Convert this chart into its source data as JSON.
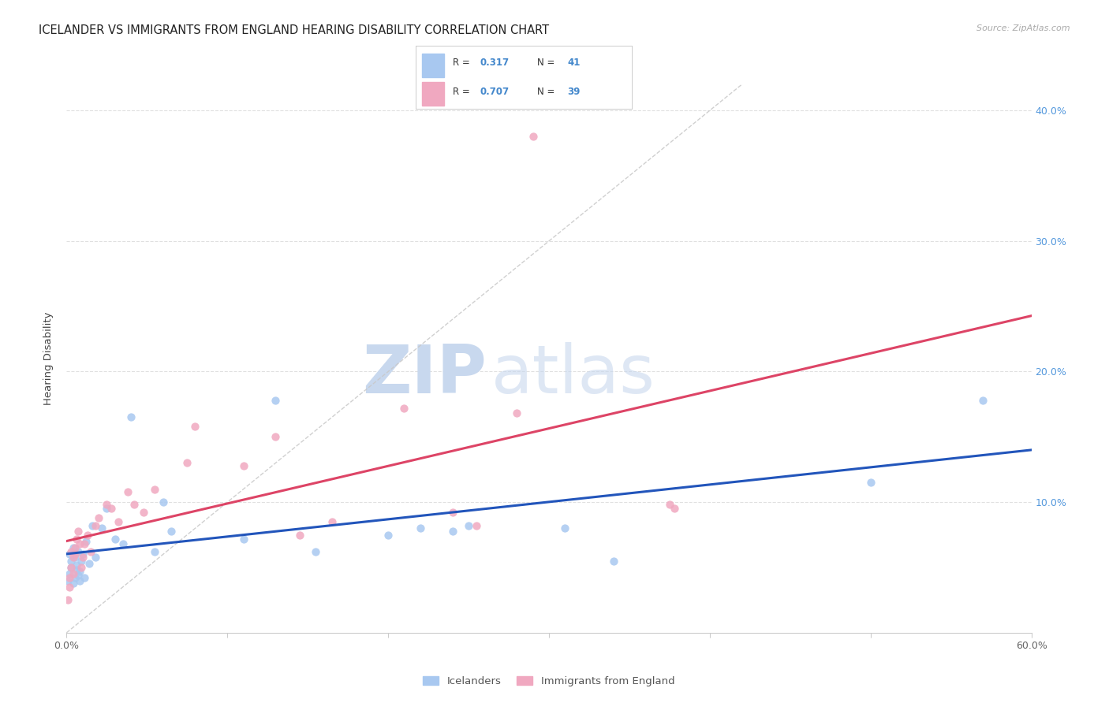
{
  "title": "ICELANDER VS IMMIGRANTS FROM ENGLAND HEARING DISABILITY CORRELATION CHART",
  "source": "Source: ZipAtlas.com",
  "ylabel": "Hearing Disability",
  "x_min": 0.0,
  "x_max": 0.6,
  "y_min": 0.0,
  "y_max": 0.42,
  "x_ticks": [
    0.0,
    0.1,
    0.2,
    0.3,
    0.4,
    0.5,
    0.6
  ],
  "x_tick_labels": [
    "0.0%",
    "",
    "",
    "",
    "",
    "",
    "60.0%"
  ],
  "y_ticks_right": [
    0.1,
    0.2,
    0.3,
    0.4
  ],
  "y_tick_labels_right": [
    "10.0%",
    "20.0%",
    "30.0%",
    "40.0%"
  ],
  "legend_bottom1": "Icelanders",
  "legend_bottom2": "Immigrants from England",
  "blue_color": "#a8c8f0",
  "pink_color": "#f0a8c0",
  "blue_line_color": "#2255bb",
  "pink_line_color": "#dd4466",
  "diag_line_color": "#c8c8c8",
  "watermark_color": "#dce8f5",
  "watermark_text": "ZIPatlas",
  "grid_color": "#e0e0e0",
  "title_fontsize": 10.5,
  "axis_fontsize": 9,
  "marker_size": 55,
  "blue_x": [
    0.001,
    0.002,
    0.002,
    0.003,
    0.003,
    0.004,
    0.004,
    0.005,
    0.005,
    0.006,
    0.006,
    0.007,
    0.007,
    0.008,
    0.008,
    0.009,
    0.01,
    0.011,
    0.012,
    0.014,
    0.016,
    0.018,
    0.022,
    0.025,
    0.03,
    0.035,
    0.04,
    0.055,
    0.06,
    0.065,
    0.11,
    0.13,
    0.155,
    0.2,
    0.22,
    0.24,
    0.25,
    0.31,
    0.34,
    0.5,
    0.57
  ],
  "blue_y": [
    0.04,
    0.06,
    0.045,
    0.055,
    0.05,
    0.065,
    0.038,
    0.058,
    0.042,
    0.052,
    0.048,
    0.044,
    0.062,
    0.047,
    0.04,
    0.055,
    0.06,
    0.042,
    0.07,
    0.053,
    0.082,
    0.058,
    0.08,
    0.095,
    0.072,
    0.068,
    0.165,
    0.062,
    0.1,
    0.078,
    0.072,
    0.178,
    0.062,
    0.075,
    0.08,
    0.078,
    0.082,
    0.08,
    0.055,
    0.115,
    0.178
  ],
  "pink_x": [
    0.001,
    0.002,
    0.002,
    0.003,
    0.003,
    0.004,
    0.004,
    0.005,
    0.005,
    0.006,
    0.007,
    0.008,
    0.009,
    0.01,
    0.011,
    0.013,
    0.015,
    0.018,
    0.02,
    0.025,
    0.028,
    0.032,
    0.038,
    0.042,
    0.048,
    0.055,
    0.075,
    0.08,
    0.11,
    0.13,
    0.145,
    0.165,
    0.21,
    0.24,
    0.255,
    0.28,
    0.29,
    0.375,
    0.378
  ],
  "pink_y": [
    0.025,
    0.035,
    0.042,
    0.05,
    0.062,
    0.058,
    0.045,
    0.065,
    0.06,
    0.072,
    0.078,
    0.068,
    0.05,
    0.058,
    0.068,
    0.075,
    0.062,
    0.082,
    0.088,
    0.098,
    0.095,
    0.085,
    0.108,
    0.098,
    0.092,
    0.11,
    0.13,
    0.158,
    0.128,
    0.15,
    0.075,
    0.085,
    0.172,
    0.092,
    0.082,
    0.168,
    0.38,
    0.098,
    0.095
  ]
}
